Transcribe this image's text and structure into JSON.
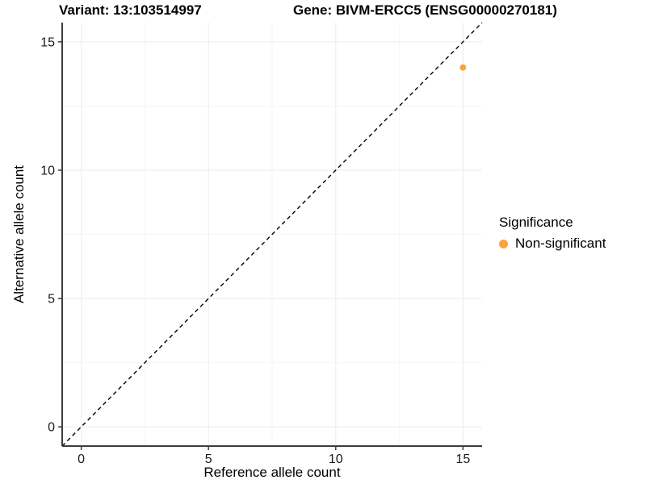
{
  "header": {
    "variant_title": "Variant: 13:103514997",
    "gene_title": "Gene: BIVM-ERCC5 (ENSG00000270181)"
  },
  "chart_data": {
    "type": "scatter",
    "xlabel": "Reference allele count",
    "ylabel": "Alternative allele count",
    "xlim": [
      -0.75,
      15.75
    ],
    "ylim": [
      -0.75,
      15.75
    ],
    "xticks": [
      0,
      5,
      10,
      15
    ],
    "yticks": [
      0,
      5,
      10,
      15
    ],
    "x_minor": [
      2.5,
      7.5,
      12.5
    ],
    "y_minor": [
      2.5,
      7.5,
      12.5
    ],
    "grid": "major and minor gridlines, light gray on white",
    "abline": {
      "slope": 1,
      "intercept": 0,
      "style": "dashed",
      "color": "#000000"
    },
    "series": [
      {
        "name": "Non-significant",
        "color": "#FAA43A",
        "points": [
          {
            "x": 15,
            "y": 14
          }
        ]
      }
    ]
  },
  "legend": {
    "title": "Significance",
    "position": "right",
    "items": [
      {
        "label": "Non-significant",
        "color": "#FAA43A"
      }
    ]
  },
  "colors": {
    "background": "#FFFFFF",
    "grid_major": "#EBEBEB",
    "grid_minor": "#F6F6F6",
    "axis_line": "#3C3C3C",
    "tick_text": "#1A1A1A",
    "tick_mark": "#3C3C3C"
  }
}
